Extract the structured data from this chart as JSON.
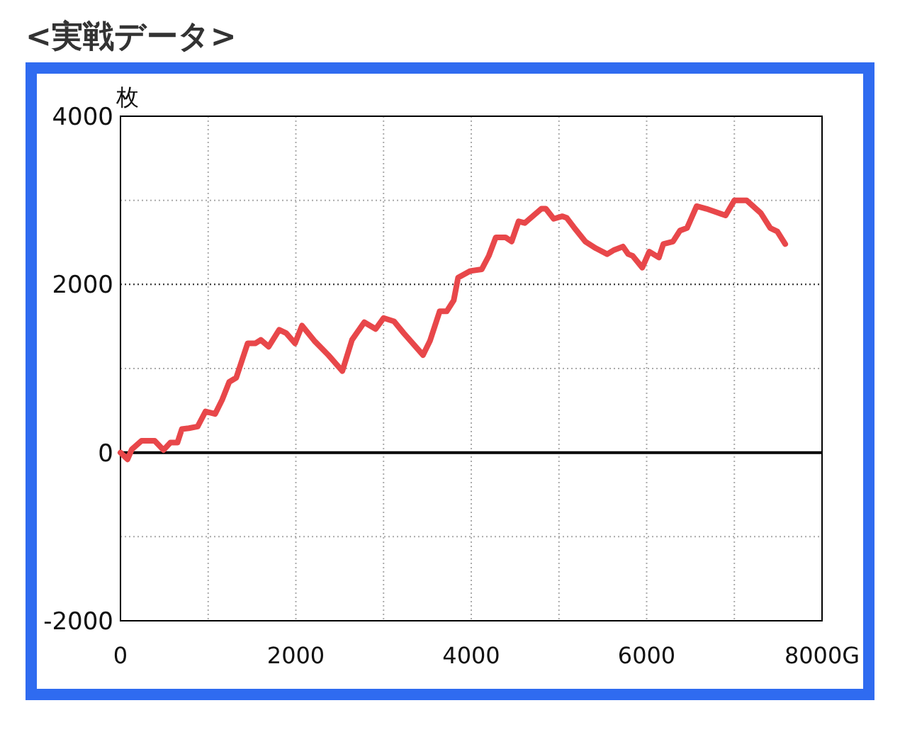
{
  "chart_data": {
    "type": "line",
    "title": "<実戦データ>",
    "ylabel": "枚",
    "x": [
      0,
      80,
      130,
      240,
      390,
      490,
      570,
      650,
      700,
      780,
      880,
      970,
      1080,
      1160,
      1240,
      1320,
      1450,
      1540,
      1600,
      1690,
      1810,
      1890,
      1990,
      2070,
      2210,
      2370,
      2530,
      2640,
      2780,
      2910,
      3000,
      3120,
      3230,
      3450,
      3530,
      3640,
      3720,
      3800,
      3850,
      3990,
      4120,
      4200,
      4280,
      4390,
      4460,
      4540,
      4610,
      4800,
      4850,
      4940,
      5040,
      5090,
      5170,
      5300,
      5420,
      5550,
      5630,
      5730,
      5790,
      5840,
      5950,
      6030,
      6140,
      6190,
      6300,
      6380,
      6460,
      6570,
      6680,
      6790,
      6900,
      7000,
      7140,
      7300,
      7410,
      7490,
      7580
    ],
    "series": [
      {
        "color": "#e8474a",
        "values": [
          0,
          -80,
          40,
          140,
          140,
          30,
          120,
          120,
          280,
          290,
          310,
          490,
          460,
          630,
          840,
          890,
          1300,
          1300,
          1340,
          1260,
          1460,
          1420,
          1300,
          1510,
          1330,
          1160,
          970,
          1340,
          1550,
          1470,
          1600,
          1560,
          1420,
          1160,
          1330,
          1680,
          1680,
          1810,
          2080,
          2160,
          2180,
          2340,
          2560,
          2560,
          2510,
          2750,
          2730,
          2900,
          2900,
          2780,
          2810,
          2790,
          2680,
          2510,
          2430,
          2360,
          2410,
          2450,
          2360,
          2340,
          2200,
          2390,
          2320,
          2480,
          2510,
          2640,
          2670,
          2930,
          2900,
          2860,
          2820,
          3000,
          3000,
          2850,
          2670,
          2630,
          2480
        ]
      }
    ],
    "xlim": [
      0,
      8000
    ],
    "ylim": [
      -2000,
      4000
    ],
    "xticks": [
      0,
      {
        "value": 1000,
        "label": null
      },
      2000,
      {
        "value": 3000,
        "label": null
      },
      4000,
      {
        "value": 5000,
        "label": null
      },
      6000,
      {
        "value": 7000,
        "label": null
      },
      {
        "value": 8000,
        "label": "8000G"
      }
    ],
    "yticks": [
      -2000,
      {
        "value": -1000,
        "label": null
      },
      0,
      {
        "value": 1000,
        "label": null
      },
      2000,
      {
        "value": 3000,
        "label": null
      },
      4000
    ],
    "ref_lines": [
      {
        "axis": "y",
        "value": 0,
        "color": "#000000",
        "line_style": "solid"
      },
      {
        "axis": "y",
        "value": 2000,
        "color": "#333333",
        "line_style": "dotted"
      }
    ],
    "grid": true,
    "line_style": "solid",
    "marker": "none"
  }
}
